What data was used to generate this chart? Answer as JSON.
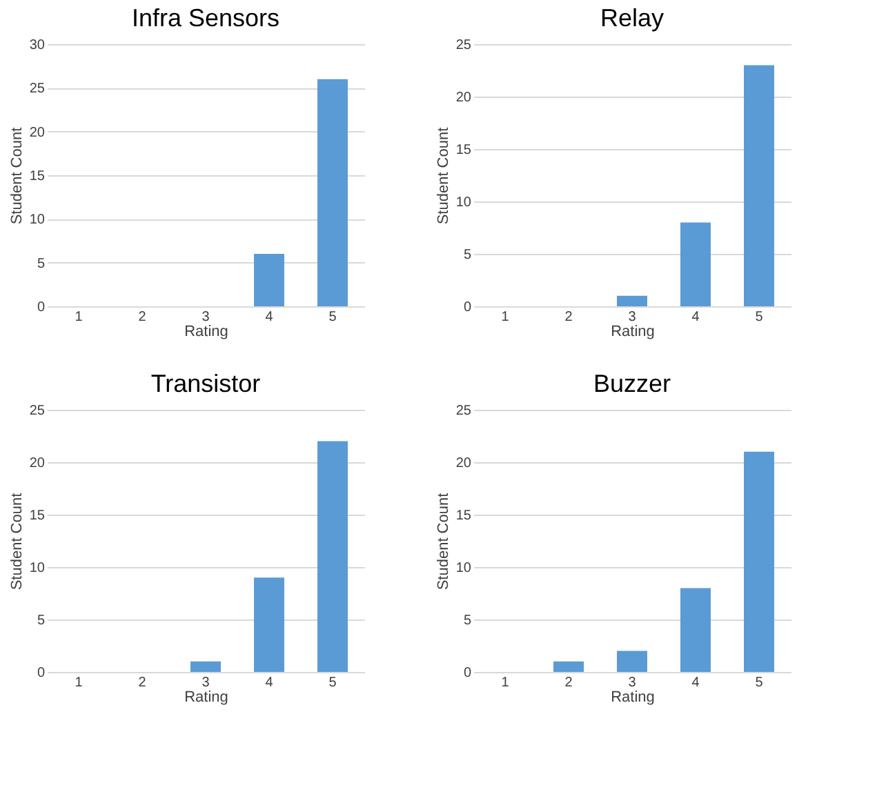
{
  "chart_data": [
    {
      "type": "bar",
      "title": "Infra Sensors",
      "xlabel": "Rating",
      "ylabel": "Student Count",
      "categories": [
        "1",
        "2",
        "3",
        "4",
        "5"
      ],
      "values": [
        0,
        0,
        0,
        6,
        26
      ],
      "color": "#5b9bd5",
      "ylim": [
        0,
        30
      ],
      "yticks": [
        0,
        5,
        10,
        15,
        20,
        25,
        30
      ],
      "grid": "y"
    },
    {
      "type": "bar",
      "title": "Relay",
      "xlabel": "Rating",
      "ylabel": "Student Count",
      "categories": [
        "1",
        "2",
        "3",
        "4",
        "5"
      ],
      "values": [
        0,
        0,
        1,
        8,
        23
      ],
      "color": "#5b9bd5",
      "ylim": [
        0,
        25
      ],
      "yticks": [
        0,
        5,
        10,
        15,
        20,
        25
      ],
      "grid": "y"
    },
    {
      "type": "bar",
      "title": "Transistor",
      "xlabel": "Rating",
      "ylabel": "Student Count",
      "categories": [
        "1",
        "2",
        "3",
        "4",
        "5"
      ],
      "values": [
        0,
        0,
        1,
        9,
        22
      ],
      "color": "#5b9bd5",
      "ylim": [
        0,
        25
      ],
      "yticks": [
        0,
        5,
        10,
        15,
        20,
        25
      ],
      "grid": "y"
    },
    {
      "type": "bar",
      "title": "Buzzer",
      "xlabel": "Rating",
      "ylabel": "Student Count",
      "categories": [
        "1",
        "2",
        "3",
        "4",
        "5"
      ],
      "values": [
        0,
        1,
        2,
        8,
        21
      ],
      "color": "#5b9bd5",
      "ylim": [
        0,
        25
      ],
      "yticks": [
        0,
        5,
        10,
        15,
        20,
        25
      ],
      "grid": "y"
    }
  ]
}
